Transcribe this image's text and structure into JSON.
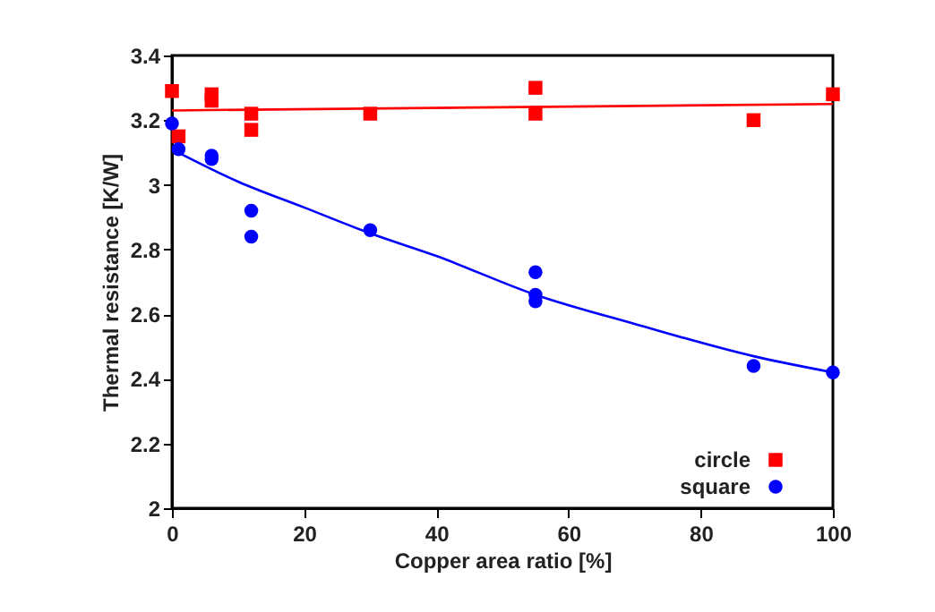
{
  "chart_data": {
    "type": "scatter",
    "xlabel": "Copper area ratio [%]",
    "ylabel": "Thermal resistance [K/W]",
    "xlim": [
      0,
      100
    ],
    "xticks": [
      0,
      20,
      40,
      60,
      80,
      100
    ],
    "ylim": [
      2,
      3.4
    ],
    "yticks": [
      2,
      2.2,
      2.4,
      2.6,
      2.8,
      3,
      3.2,
      3.4
    ],
    "grid": false,
    "legend": "bottom right",
    "series": [
      {
        "name": "circle",
        "color": "#ff0000",
        "marker": "square",
        "x": [
          0,
          1,
          6,
          6,
          12,
          12,
          30,
          55,
          55,
          88,
          100
        ],
        "values": [
          3.29,
          3.15,
          3.28,
          3.26,
          3.22,
          3.17,
          3.22,
          3.3,
          3.22,
          3.2,
          3.28
        ]
      },
      {
        "name": "square",
        "color": "#0000ff",
        "marker": "circle",
        "x": [
          0,
          1,
          6,
          6,
          12,
          12,
          30,
          55,
          55,
          55,
          88,
          100
        ],
        "values": [
          3.19,
          3.11,
          3.09,
          3.08,
          2.92,
          2.84,
          2.86,
          2.73,
          2.66,
          2.64,
          2.44,
          2.42
        ]
      },
      {
        "type": "line",
        "color": "#ff0000",
        "marker": "none",
        "x": [
          0,
          100
        ],
        "values": [
          3.23,
          3.25
        ]
      },
      {
        "type": "line",
        "color": "#0000ff",
        "marker": "none",
        "x": [
          0,
          10,
          20,
          30,
          40,
          55,
          70,
          88,
          100
        ],
        "values": [
          3.11,
          3.01,
          2.93,
          2.85,
          2.78,
          2.66,
          2.57,
          2.47,
          2.42
        ]
      }
    ]
  }
}
